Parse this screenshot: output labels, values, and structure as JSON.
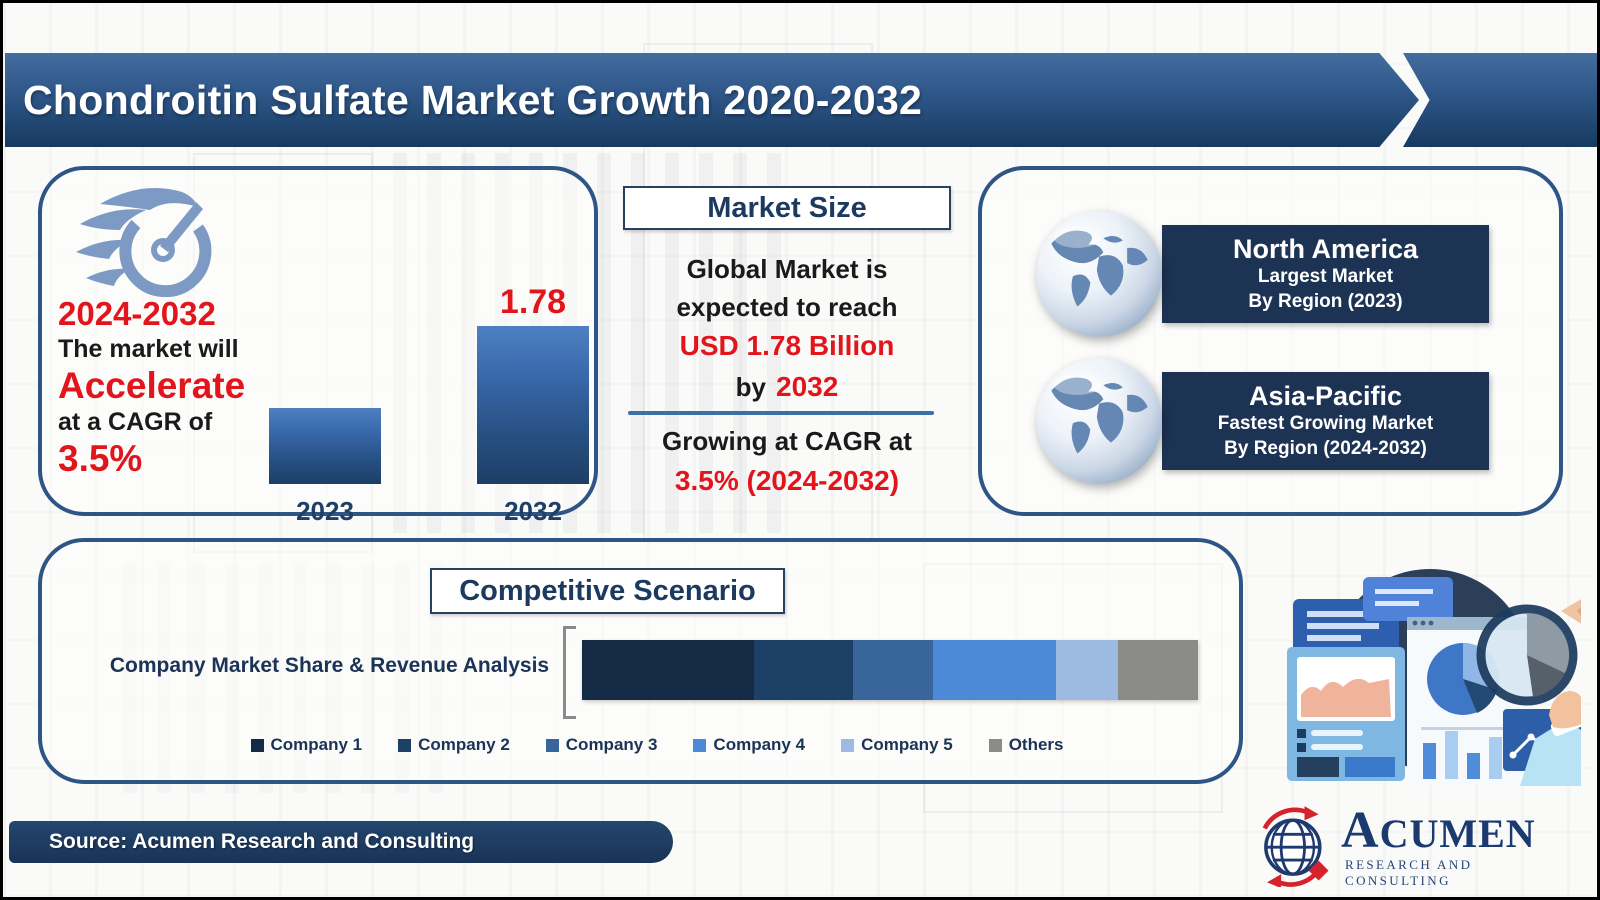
{
  "header": {
    "title": "Chondroitin Sulfate Market Growth 2020-2032"
  },
  "left_panel": {
    "icon": "gauge-speedometer-icon",
    "period": "2024-2032",
    "line1": "The market will",
    "emphasis": "Accelerate",
    "line2": "at a CAGR of",
    "cagr": "3.5%"
  },
  "market_size": {
    "title": "Market Size",
    "line1": "Global Market is",
    "line2": "expected to reach",
    "highlight": "USD 1.78 Billion",
    "by_prefix": "by",
    "by_year": "2032",
    "growing_line": "Growing at CAGR at",
    "growing_highlight": "3.5% (2024-2032)"
  },
  "regions": {
    "items": [
      {
        "title": "North America",
        "sub1": "Largest Market",
        "sub2": "By Region (2023)",
        "icon": "globe-icon"
      },
      {
        "title": "Asia-Pacific",
        "sub1": "Fastest Growing Market",
        "sub2": "By Region (2024-2032)",
        "icon": "globe-icon"
      }
    ]
  },
  "competitive": {
    "title": "Competitive Scenario",
    "axis_label": "Company Market Share & Revenue Analysis"
  },
  "chart_data": [
    {
      "type": "bar",
      "title": "",
      "categories": [
        "2023",
        "2032"
      ],
      "values": [
        0.86,
        1.78
      ],
      "value_labels": [
        "",
        "1.78"
      ],
      "unit": "USD Billion",
      "ylim": [
        0,
        1.78
      ],
      "grid": false,
      "bar_gradient": [
        "#4d80c1",
        "#1d3f66"
      ],
      "note": "2023 value estimated from relative bar height; only 1.78 is labeled"
    },
    {
      "type": "bar",
      "subtype": "stacked-horizontal",
      "title": "Competitive Scenario",
      "categories": [
        "Company Market Share & Revenue Analysis"
      ],
      "series": [
        {
          "name": "Company 1",
          "share_pct": 28,
          "color": "#152a45"
        },
        {
          "name": "Company 2",
          "share_pct": 16,
          "color": "#1d4066"
        },
        {
          "name": "Company 3",
          "share_pct": 13,
          "color": "#38659a"
        },
        {
          "name": "Company 4",
          "share_pct": 20,
          "color": "#4c89d6"
        },
        {
          "name": "Company 5",
          "share_pct": 10,
          "color": "#9cbae2"
        },
        {
          "name": "Others",
          "share_pct": 13,
          "color": "#8b8b89"
        }
      ],
      "legend_position": "bottom",
      "note": "segment shares estimated from pixel widths"
    }
  ],
  "source": {
    "text": "Source: Acumen Research and Consulting"
  },
  "logo": {
    "name": "ACUMEN",
    "tagline": "RESEARCH AND CONSULTING"
  },
  "colors": {
    "accent_red": "#e3151c",
    "navy_text": "#1c3a5f",
    "region_bar": "#1d3354",
    "panel_border": "#2e5586",
    "header_gradient_top": "#446d9f",
    "header_gradient_bottom": "#173a5e"
  }
}
